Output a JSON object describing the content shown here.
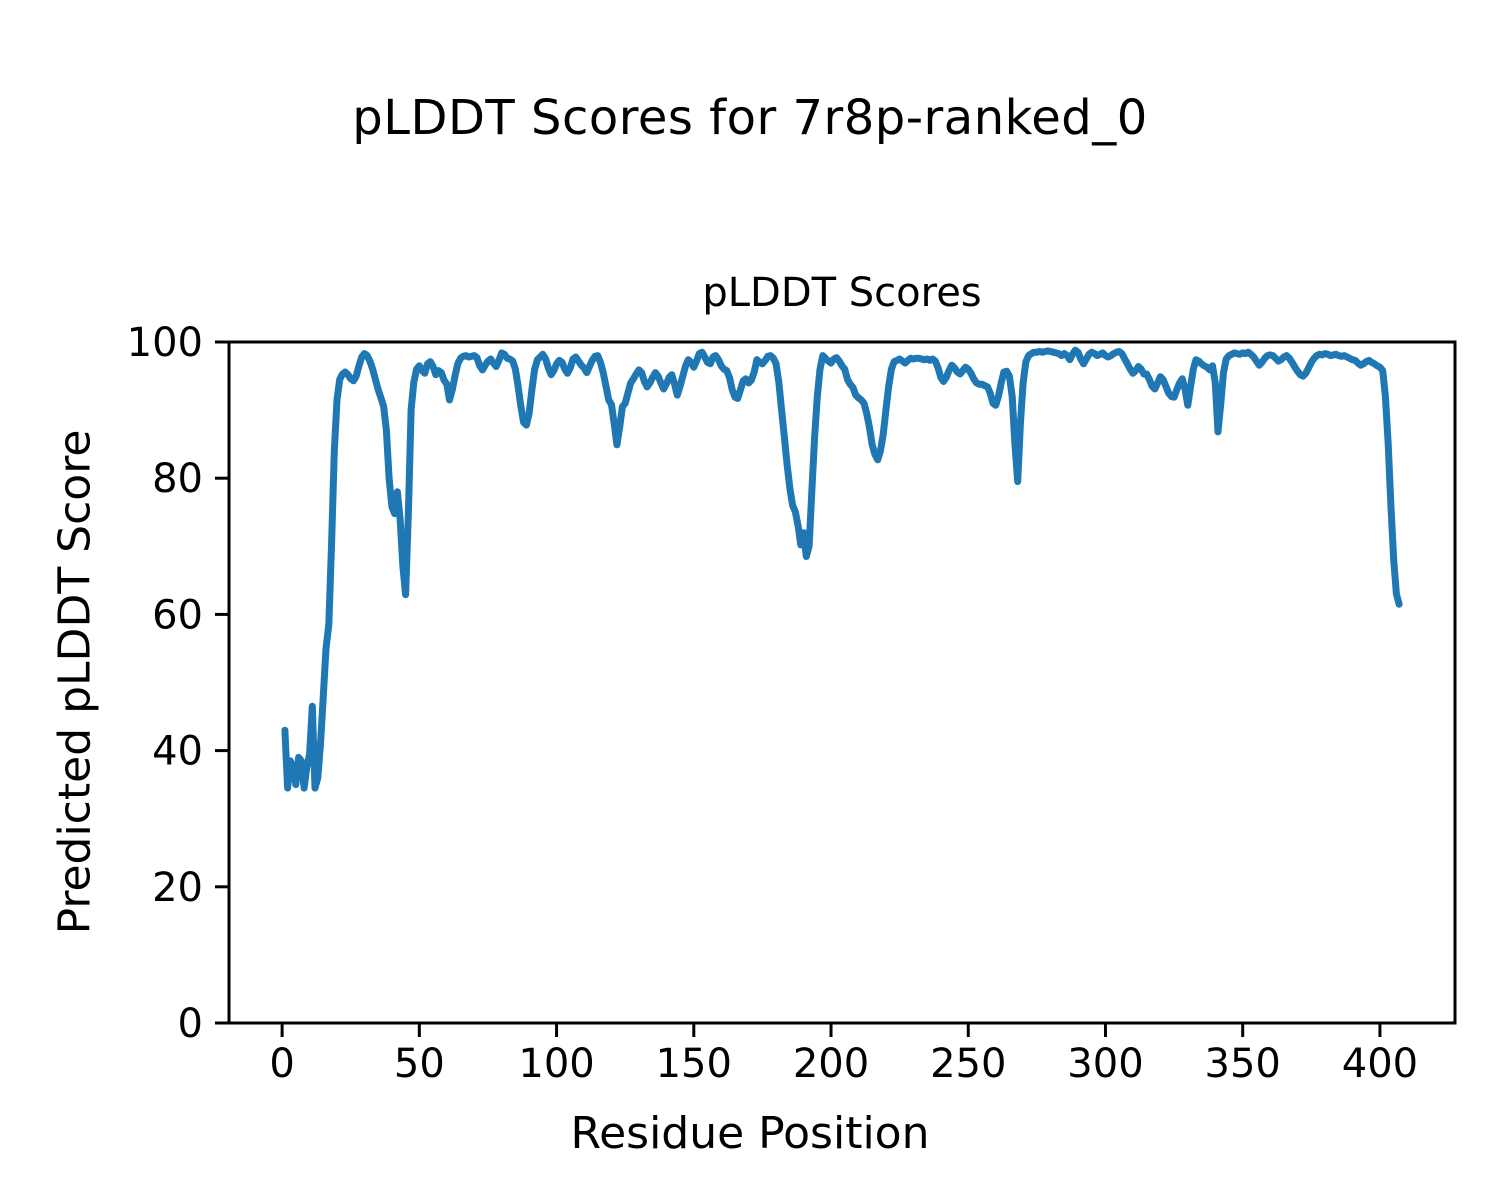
{
  "figure_title": "pLDDT Scores for 7r8p-ranked_0",
  "chart_data": {
    "type": "line",
    "title": "pLDDT Scores",
    "xlabel": "Residue Position",
    "ylabel": "Predicted pLDDT Score",
    "x_ticks": [
      0,
      50,
      100,
      150,
      200,
      250,
      300,
      350,
      400
    ],
    "y_ticks": [
      0,
      20,
      40,
      60,
      80,
      100
    ],
    "xlim": [
      -19.35,
      427.35
    ],
    "ylim": [
      0,
      100
    ],
    "grid": false,
    "legend": "none",
    "line_color": "#1f77b4",
    "axis_color": "#000000",
    "background_color": "#ffffff",
    "series": [
      {
        "name": "pLDDT",
        "x_start": 1,
        "values": [
          43.0,
          34.5,
          38.5,
          37.5,
          35.0,
          39.0,
          38.5,
          34.5,
          37.5,
          39.5,
          46.5,
          34.5,
          36.0,
          41.0,
          48.0,
          55.0,
          58.5,
          70.0,
          84.0,
          91.5,
          94.5,
          95.3,
          95.6,
          95.2,
          94.6,
          94.3,
          95.0,
          96.5,
          97.8,
          98.3,
          98.0,
          97.2,
          96.0,
          94.5,
          93.0,
          91.8,
          90.5,
          87.0,
          80.0,
          75.8,
          74.8,
          78.0,
          74.0,
          67.0,
          62.9,
          75.0,
          90.0,
          94.1,
          96.0,
          96.5,
          95.8,
          95.4,
          96.8,
          97.1,
          96.4,
          95.2,
          95.8,
          95.5,
          94.4,
          93.8,
          91.5,
          93.0,
          95.0,
          96.8,
          97.6,
          97.9,
          98.0,
          97.8,
          97.9,
          98.0,
          97.7,
          96.5,
          95.9,
          96.6,
          97.2,
          97.5,
          96.9,
          96.4,
          97.3,
          98.4,
          98.2,
          97.6,
          97.5,
          97.2,
          96.0,
          93.5,
          90.5,
          88.2,
          87.8,
          89.5,
          93.0,
          96.0,
          97.4,
          97.8,
          98.2,
          97.5,
          96.2,
          95.2,
          95.8,
          96.8,
          97.3,
          97.0,
          96.0,
          95.4,
          96.2,
          97.5,
          97.8,
          97.2,
          96.6,
          96.2,
          95.5,
          96.4,
          97.3,
          97.9,
          98.0,
          97.0,
          95.5,
          93.5,
          91.5,
          90.8,
          88.0,
          84.9,
          87.5,
          90.5,
          91.0,
          92.5,
          94.0,
          94.6,
          95.3,
          95.9,
          95.5,
          94.2,
          93.4,
          94.0,
          94.8,
          95.5,
          95.0,
          94.0,
          93.1,
          93.8,
          94.8,
          95.2,
          93.8,
          92.2,
          93.5,
          95.0,
          96.5,
          97.4,
          97.0,
          96.3,
          97.2,
          98.3,
          98.5,
          97.8,
          97.0,
          96.8,
          97.8,
          98.0,
          97.4,
          96.5,
          96.0,
          95.8,
          94.8,
          93.0,
          91.9,
          91.7,
          93.0,
          94.3,
          94.6,
          94.0,
          94.4,
          95.6,
          97.4,
          97.0,
          96.8,
          97.3,
          97.9,
          98.0,
          97.6,
          96.8,
          94.0,
          90.0,
          86.0,
          82.0,
          78.5,
          76.0,
          75.1,
          73.0,
          70.2,
          72.0,
          68.5,
          70.0,
          78.0,
          86.0,
          92.0,
          96.0,
          98.0,
          97.6,
          97.2,
          96.9,
          97.5,
          97.7,
          97.2,
          96.5,
          96.0,
          94.5,
          93.8,
          93.3,
          92.2,
          91.8,
          91.5,
          91.0,
          89.5,
          87.5,
          84.9,
          83.5,
          82.7,
          84.0,
          86.4,
          90.0,
          93.5,
          96.0,
          97.1,
          97.3,
          97.5,
          97.2,
          96.9,
          97.3,
          97.6,
          97.5,
          97.6,
          97.6,
          97.5,
          97.4,
          97.5,
          97.3,
          97.5,
          97.2,
          96.2,
          94.8,
          94.2,
          94.8,
          95.8,
          96.6,
          96.2,
          95.6,
          95.3,
          95.8,
          96.3,
          96.0,
          95.4,
          94.6,
          94.0,
          93.8,
          93.8,
          93.6,
          93.4,
          92.5,
          91.0,
          90.7,
          92.0,
          94.0,
          95.6,
          95.7,
          95.0,
          92.0,
          85.0,
          79.5,
          88.0,
          94.0,
          97.1,
          98.0,
          98.3,
          98.5,
          98.5,
          98.6,
          98.5,
          98.6,
          98.7,
          98.6,
          98.5,
          98.4,
          98.3,
          98.0,
          98.3,
          98.0,
          97.4,
          98.2,
          98.8,
          98.5,
          97.5,
          96.8,
          97.5,
          98.2,
          98.5,
          98.3,
          98.0,
          98.2,
          98.4,
          98.0,
          97.8,
          98.0,
          98.3,
          98.5,
          98.6,
          98.3,
          97.5,
          96.8,
          96.0,
          95.4,
          95.8,
          96.4,
          96.0,
          95.3,
          95.3,
          94.5,
          93.5,
          93.1,
          94.0,
          94.9,
          94.5,
          93.5,
          92.5,
          92.0,
          91.9,
          93.0,
          94.0,
          94.6,
          93.0,
          90.7,
          93.5,
          96.0,
          97.4,
          97.2,
          96.8,
          96.5,
          96.3,
          95.9,
          96.5,
          94.0,
          86.8,
          91.0,
          95.5,
          97.5,
          98.0,
          98.2,
          98.4,
          98.3,
          98.2,
          98.4,
          98.3,
          98.5,
          98.2,
          97.8,
          97.2,
          96.6,
          97.0,
          97.6,
          98.0,
          98.1,
          98.0,
          97.6,
          97.2,
          97.4,
          97.8,
          98.0,
          97.6,
          97.0,
          96.3,
          95.7,
          95.2,
          95.0,
          95.4,
          96.2,
          97.0,
          97.6,
          98.0,
          98.2,
          98.1,
          98.3,
          98.2,
          98.0,
          98.1,
          98.2,
          98.0,
          97.9,
          98.0,
          97.8,
          97.6,
          97.4,
          97.3,
          96.9,
          96.6,
          96.8,
          97.1,
          97.3,
          97.0,
          96.8,
          96.5,
          96.3,
          95.8,
          92.0,
          85.0,
          76.0,
          68.0,
          63.0,
          61.5
        ]
      }
    ]
  }
}
